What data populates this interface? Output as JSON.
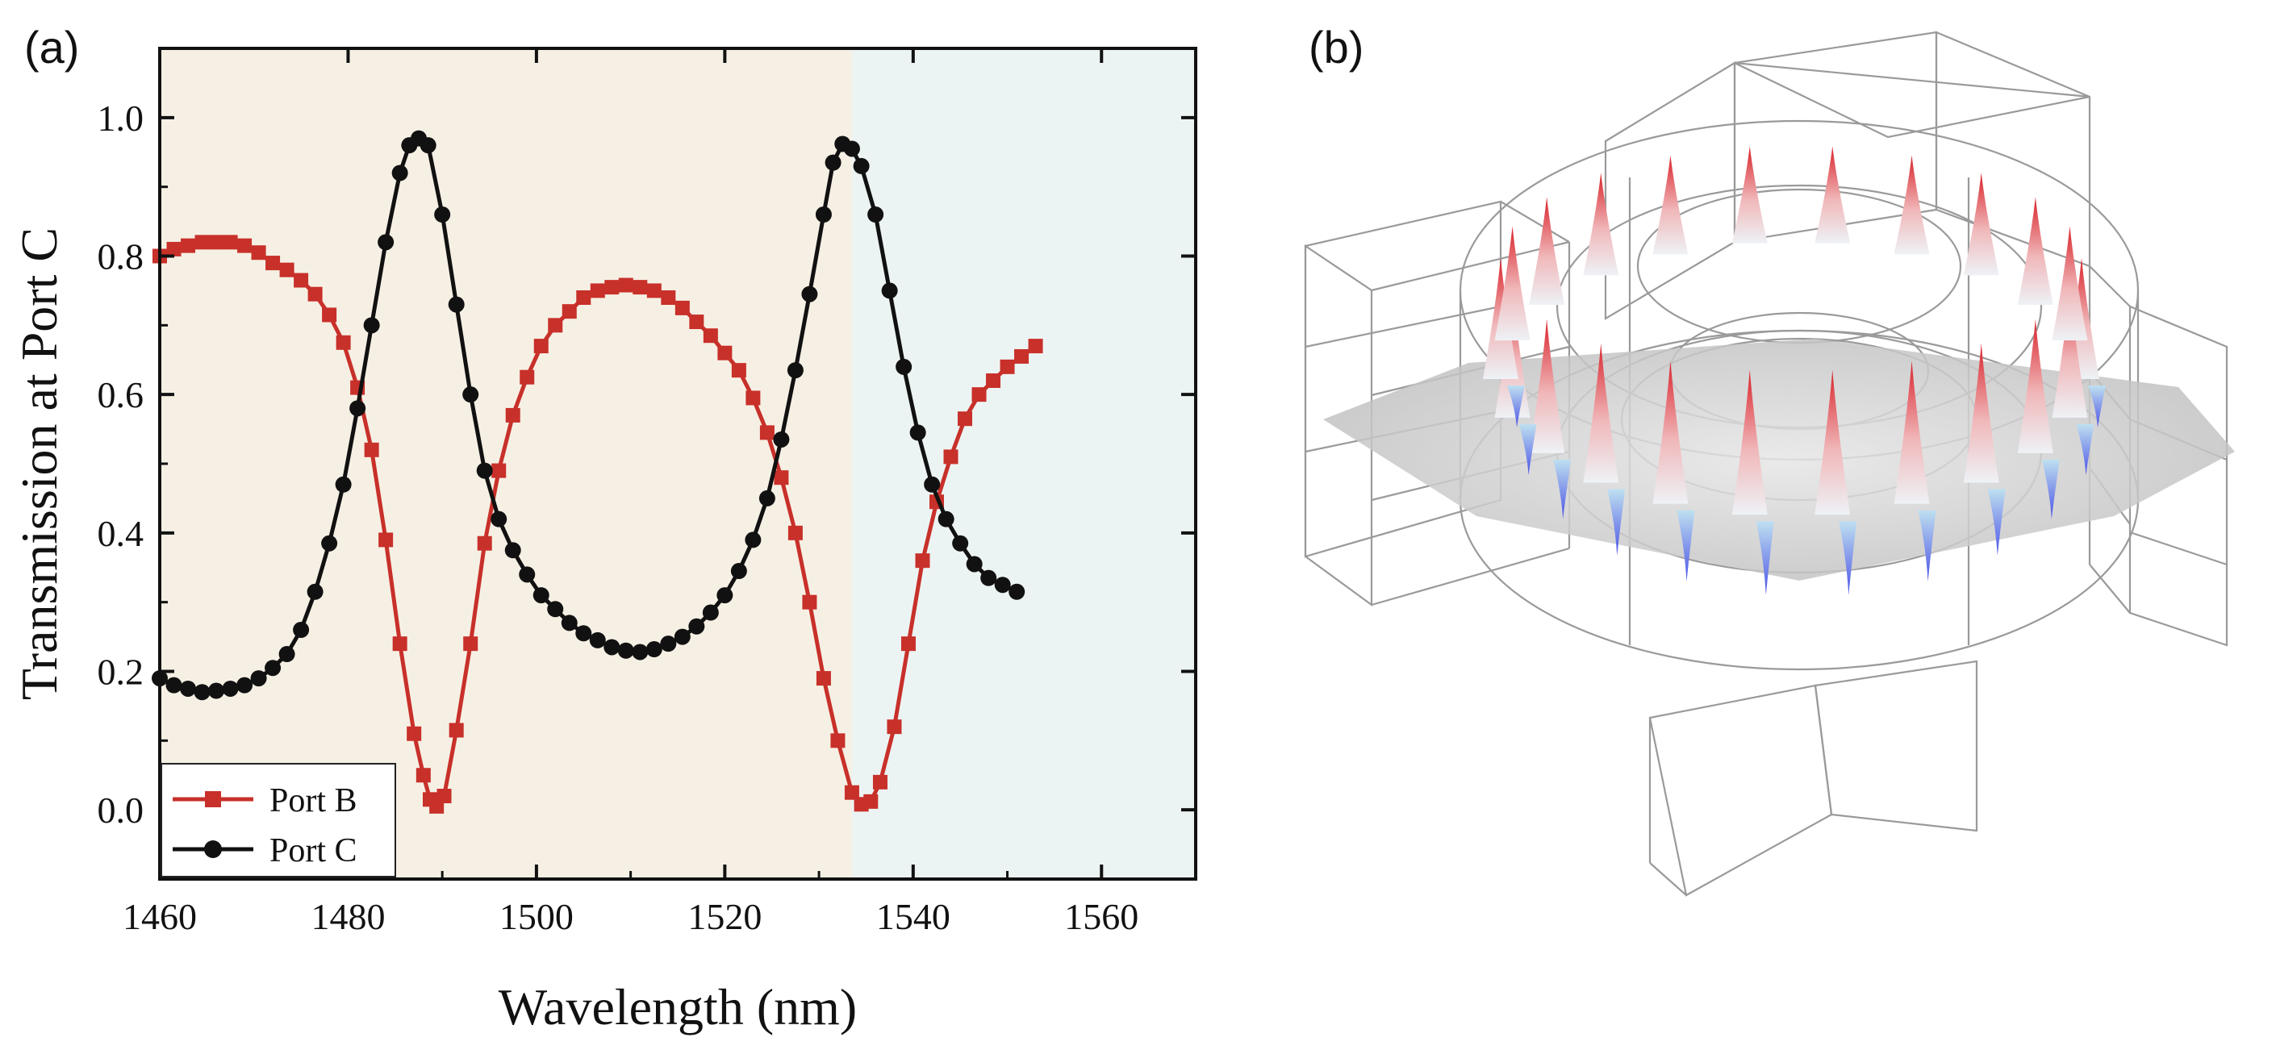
{
  "panels": {
    "a_label": "(a)",
    "b_label": "(b)"
  },
  "chart_data": {
    "type": "line",
    "xlabel": "Wavelength (nm)",
    "ylabel": "Transmission at Port C",
    "xlim": [
      1460,
      1570
    ],
    "ylim": [
      -0.1,
      1.1
    ],
    "x_ticks": [
      1460,
      1480,
      1500,
      1520,
      1540,
      1560
    ],
    "y_ticks": [
      "0.0",
      "0.2",
      "0.4",
      "0.6",
      "0.8",
      "1.0"
    ],
    "y_tick_values": [
      0.0,
      0.2,
      0.4,
      0.6,
      0.8,
      1.0
    ],
    "shaded_regions": [
      {
        "x_from": 1460,
        "x_to": 1533.5,
        "color": "#f6f0e4"
      },
      {
        "x_from": 1533.5,
        "x_to": 1570,
        "color": "#ecf4f3"
      }
    ],
    "legend": {
      "position": "bottom-left",
      "entries": [
        "Port B",
        "Port C"
      ]
    },
    "series": [
      {
        "name": "Port B",
        "color": "#c8302a",
        "marker": "square",
        "points": [
          [
            1460,
            0.8
          ],
          [
            1461.5,
            0.81
          ],
          [
            1463,
            0.815
          ],
          [
            1464.5,
            0.82
          ],
          [
            1466,
            0.82
          ],
          [
            1467.5,
            0.82
          ],
          [
            1469,
            0.815
          ],
          [
            1470.5,
            0.805
          ],
          [
            1472,
            0.79
          ],
          [
            1473.5,
            0.78
          ],
          [
            1475,
            0.765
          ],
          [
            1476.5,
            0.745
          ],
          [
            1478,
            0.715
          ],
          [
            1479.5,
            0.675
          ],
          [
            1481,
            0.61
          ],
          [
            1482.5,
            0.52
          ],
          [
            1484,
            0.39
          ],
          [
            1485.5,
            0.24
          ],
          [
            1487,
            0.11
          ],
          [
            1488,
            0.05
          ],
          [
            1488.7,
            0.015
          ],
          [
            1489.4,
            0.005
          ],
          [
            1490.2,
            0.02
          ],
          [
            1491.5,
            0.115
          ],
          [
            1493,
            0.24
          ],
          [
            1494.5,
            0.385
          ],
          [
            1496,
            0.49
          ],
          [
            1497.5,
            0.57
          ],
          [
            1499,
            0.625
          ],
          [
            1500.5,
            0.67
          ],
          [
            1502,
            0.7
          ],
          [
            1503.5,
            0.72
          ],
          [
            1505,
            0.74
          ],
          [
            1506.5,
            0.75
          ],
          [
            1508,
            0.755
          ],
          [
            1509.5,
            0.758
          ],
          [
            1511,
            0.755
          ],
          [
            1512.5,
            0.75
          ],
          [
            1514,
            0.74
          ],
          [
            1515.5,
            0.725
          ],
          [
            1517,
            0.705
          ],
          [
            1518.5,
            0.685
          ],
          [
            1520,
            0.66
          ],
          [
            1521.5,
            0.635
          ],
          [
            1523,
            0.595
          ],
          [
            1524.5,
            0.545
          ],
          [
            1526,
            0.48
          ],
          [
            1527.5,
            0.4
          ],
          [
            1529,
            0.3
          ],
          [
            1530.5,
            0.19
          ],
          [
            1532,
            0.1
          ],
          [
            1533.5,
            0.025
          ],
          [
            1534.5,
            0.008
          ],
          [
            1535.5,
            0.012
          ],
          [
            1536.5,
            0.04
          ],
          [
            1538,
            0.12
          ],
          [
            1539.5,
            0.24
          ],
          [
            1541,
            0.36
          ],
          [
            1542.5,
            0.445
          ],
          [
            1544,
            0.51
          ],
          [
            1545.5,
            0.565
          ],
          [
            1547,
            0.6
          ],
          [
            1548.5,
            0.62
          ],
          [
            1550,
            0.64
          ],
          [
            1551.5,
            0.655
          ],
          [
            1553,
            0.67
          ]
        ]
      },
      {
        "name": "Port C",
        "color": "#111111",
        "marker": "circle",
        "points": [
          [
            1460,
            0.19
          ],
          [
            1461.5,
            0.18
          ],
          [
            1463,
            0.175
          ],
          [
            1464.5,
            0.17
          ],
          [
            1466,
            0.172
          ],
          [
            1467.5,
            0.175
          ],
          [
            1469,
            0.18
          ],
          [
            1470.5,
            0.19
          ],
          [
            1472,
            0.205
          ],
          [
            1473.5,
            0.225
          ],
          [
            1475,
            0.26
          ],
          [
            1476.5,
            0.315
          ],
          [
            1478,
            0.385
          ],
          [
            1479.5,
            0.47
          ],
          [
            1481,
            0.58
          ],
          [
            1482.5,
            0.7
          ],
          [
            1484,
            0.82
          ],
          [
            1485.5,
            0.92
          ],
          [
            1486.5,
            0.96
          ],
          [
            1487.5,
            0.97
          ],
          [
            1488.5,
            0.96
          ],
          [
            1490,
            0.86
          ],
          [
            1491.5,
            0.73
          ],
          [
            1493,
            0.6
          ],
          [
            1494.5,
            0.49
          ],
          [
            1496,
            0.42
          ],
          [
            1497.5,
            0.375
          ],
          [
            1499,
            0.34
          ],
          [
            1500.5,
            0.31
          ],
          [
            1502,
            0.29
          ],
          [
            1503.5,
            0.27
          ],
          [
            1505,
            0.255
          ],
          [
            1506.5,
            0.245
          ],
          [
            1508,
            0.235
          ],
          [
            1509.5,
            0.23
          ],
          [
            1511,
            0.228
          ],
          [
            1512.5,
            0.232
          ],
          [
            1514,
            0.24
          ],
          [
            1515.5,
            0.25
          ],
          [
            1517,
            0.265
          ],
          [
            1518.5,
            0.285
          ],
          [
            1520,
            0.31
          ],
          [
            1521.5,
            0.345
          ],
          [
            1523,
            0.39
          ],
          [
            1524.5,
            0.45
          ],
          [
            1526,
            0.535
          ],
          [
            1527.5,
            0.635
          ],
          [
            1529,
            0.745
          ],
          [
            1530.5,
            0.86
          ],
          [
            1531.5,
            0.935
          ],
          [
            1532.5,
            0.962
          ],
          [
            1533.5,
            0.955
          ],
          [
            1534.5,
            0.93
          ],
          [
            1536,
            0.86
          ],
          [
            1537.5,
            0.75
          ],
          [
            1539,
            0.64
          ],
          [
            1540.5,
            0.545
          ],
          [
            1542,
            0.47
          ],
          [
            1543.5,
            0.42
          ],
          [
            1545,
            0.385
          ],
          [
            1546.5,
            0.355
          ],
          [
            1548,
            0.335
          ],
          [
            1549.5,
            0.325
          ],
          [
            1551,
            0.315
          ]
        ]
      }
    ]
  }
}
